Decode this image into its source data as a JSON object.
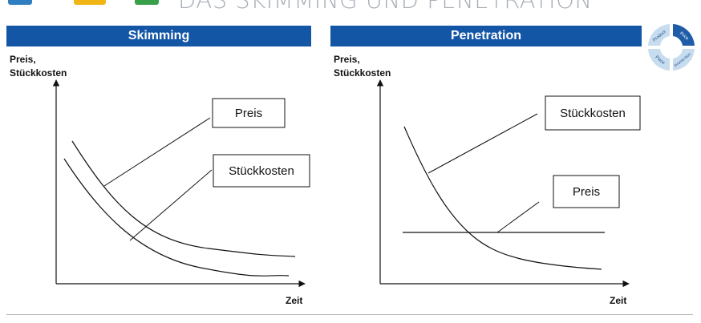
{
  "slide": {
    "title": "DAS SKIMMING UND PENETRATION"
  },
  "skimming": {
    "header": "Skimming",
    "y_label_line1": "Preis,",
    "y_label_line2": "Stückkosten",
    "x_label": "Zeit",
    "box_preis": "Preis",
    "box_stueckkosten": "Stückkosten"
  },
  "penetration": {
    "header": "Penetration",
    "y_label_line1": "Preis,",
    "y_label_line2": "Stückkosten",
    "x_label": "Zeit",
    "box_stueckkosten": "Stückkosten",
    "box_preis": "Preis"
  },
  "marketing_mix_icon": {
    "segments": [
      "Product",
      "Price",
      "Promo-tion",
      "Place"
    ],
    "highlighted": "Price"
  },
  "colors": {
    "header_bar": "#1456a6",
    "title_text": "#a9aeb8",
    "icon_dark": "#1f5da8",
    "icon_light": "#c8dcef"
  }
}
